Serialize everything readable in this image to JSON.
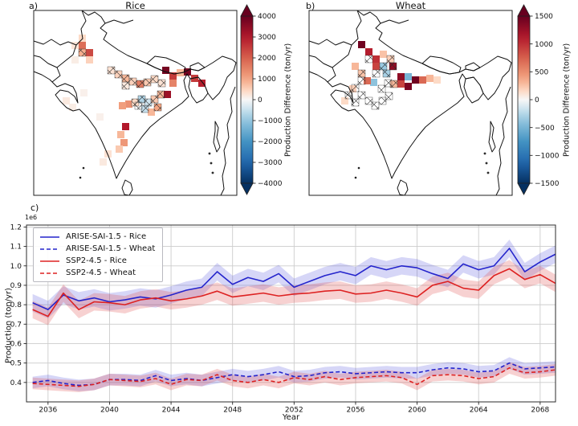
{
  "figure": {
    "panel_a": {
      "label": "a)",
      "title": "Rice",
      "colorbar": {
        "label": "Production Difference (ton/yr)",
        "vmax": 4000,
        "vmin": -4000,
        "ticks": [
          4000,
          3000,
          2000,
          1000,
          0,
          -1000,
          -2000,
          -3000,
          -4000
        ]
      }
    },
    "panel_b": {
      "label": "b)",
      "title": "Wheat",
      "colorbar": {
        "label": "Production Difference (ton/yr)",
        "vmax": 1500,
        "vmin": -1500,
        "ticks": [
          1500,
          1000,
          500,
          0,
          -500,
          -1000,
          -1500
        ]
      }
    },
    "panel_c": {
      "label": "c)",
      "offset_label": "1e6",
      "xlabel": "Year",
      "ylabel": "Production (ton/yr)"
    }
  },
  "chart_data": [
    {
      "type": "heatmap",
      "name": "rice-production-difference-map",
      "title": "Rice",
      "region": "India",
      "colorbar_label": "Production Difference (ton/yr)",
      "units": "ton/yr",
      "vmin": -4000,
      "vmax": 4000,
      "colorbar_ticks": [
        4000,
        3000,
        2000,
        1000,
        0,
        -1000,
        -2000,
        -3000,
        -4000
      ],
      "hatching_meaning": "stippled/hatched cells",
      "cells": [
        {
          "x": 56,
          "y": 30,
          "v": 400
        },
        {
          "x": 56,
          "y": 39,
          "v": 1800
        },
        {
          "x": 47,
          "y": 39,
          "v": 250
        },
        {
          "x": 65,
          "y": 48,
          "v": 2300
        },
        {
          "x": 56,
          "y": 48,
          "v": 900,
          "h": 1
        },
        {
          "x": 65,
          "y": 57,
          "v": 500
        },
        {
          "x": 47,
          "y": 57,
          "v": 150
        },
        {
          "x": 92,
          "y": 70,
          "v": 300,
          "h": 1
        },
        {
          "x": 101,
          "y": 75,
          "v": 500,
          "h": 1
        },
        {
          "x": 110,
          "y": 80,
          "v": 800,
          "h": 1
        },
        {
          "x": 119,
          "y": 84,
          "v": 500,
          "h": 1
        },
        {
          "x": 128,
          "y": 87,
          "v": 1600,
          "h": 1
        },
        {
          "x": 137,
          "y": 85,
          "v": 600,
          "h": 1
        },
        {
          "x": 146,
          "y": 81,
          "v": 400,
          "h": 1
        },
        {
          "x": 155,
          "y": 86,
          "v": 300,
          "h": 1
        },
        {
          "x": 110,
          "y": 89,
          "v": 200,
          "h": 1
        },
        {
          "x": 160,
          "y": 70,
          "v": 3800
        },
        {
          "x": 169,
          "y": 77,
          "v": 2500
        },
        {
          "x": 178,
          "y": 73,
          "v": 800
        },
        {
          "x": 187,
          "y": 72,
          "v": 3800
        },
        {
          "x": 196,
          "y": 80,
          "v": 2500
        },
        {
          "x": 205,
          "y": 86,
          "v": 2900
        },
        {
          "x": 169,
          "y": 86,
          "v": 1500
        },
        {
          "x": 114,
          "y": 112,
          "v": 1300
        },
        {
          "x": 106,
          "y": 114,
          "v": 1100
        },
        {
          "x": 122,
          "y": 110,
          "v": 400,
          "h": 1
        },
        {
          "x": 130,
          "y": 106,
          "v": -700,
          "h": 1
        },
        {
          "x": 138,
          "y": 110,
          "v": -400,
          "h": 1
        },
        {
          "x": 146,
          "y": 106,
          "v": 600,
          "h": 1
        },
        {
          "x": 154,
          "y": 100,
          "v": 800,
          "h": 1
        },
        {
          "x": 162,
          "y": 100,
          "v": 3300
        },
        {
          "x": 134,
          "y": 118,
          "v": -500,
          "h": 1
        },
        {
          "x": 142,
          "y": 122,
          "v": 800
        },
        {
          "x": 150,
          "y": 116,
          "v": 1000,
          "h": 1
        },
        {
          "x": 126,
          "y": 114,
          "h": 1
        },
        {
          "x": 110,
          "y": 140,
          "v": 3000
        },
        {
          "x": 104,
          "y": 150,
          "v": 800
        },
        {
          "x": 108,
          "y": 160,
          "v": 1200
        },
        {
          "x": 102,
          "y": 168,
          "v": 600
        },
        {
          "x": 36,
          "y": 108,
          "v": 200
        },
        {
          "x": 44,
          "y": 116,
          "v": 150
        },
        {
          "x": 78,
          "y": 128,
          "v": 100
        },
        {
          "x": 88,
          "y": 174,
          "v": 300
        },
        {
          "x": 82,
          "y": 184,
          "v": 200
        },
        {
          "x": 58,
          "y": 98,
          "v": 100
        }
      ]
    },
    {
      "type": "heatmap",
      "name": "wheat-production-difference-map",
      "title": "Wheat",
      "region": "India",
      "colorbar_label": "Production Difference (ton/yr)",
      "units": "ton/yr",
      "vmin": -1500,
      "vmax": 1500,
      "colorbar_ticks": [
        1500,
        1000,
        500,
        0,
        -500,
        -1000,
        -1500
      ],
      "hatching_meaning": "stippled/hatched cells",
      "cells": [
        {
          "x": 61,
          "y": 38,
          "v": 1450
        },
        {
          "x": 70,
          "y": 47,
          "v": 1100
        },
        {
          "x": 79,
          "y": 56,
          "v": 1000
        },
        {
          "x": 88,
          "y": 50,
          "v": 250
        },
        {
          "x": 79,
          "y": 65,
          "v": 900
        },
        {
          "x": 88,
          "y": 65,
          "v": -350,
          "h": 1
        },
        {
          "x": 97,
          "y": 56,
          "v": 200,
          "h": 1
        },
        {
          "x": 76,
          "y": 85,
          "v": -400
        },
        {
          "x": 100,
          "y": 65,
          "v": 1300,
          "h": 1
        },
        {
          "x": 110,
          "y": 78,
          "v": 1300
        },
        {
          "x": 119,
          "y": 78,
          "v": -500
        },
        {
          "x": 128,
          "y": 82,
          "v": 1450
        },
        {
          "x": 137,
          "y": 82,
          "v": 700
        },
        {
          "x": 110,
          "y": 87,
          "v": 900
        },
        {
          "x": 119,
          "y": 90,
          "v": 1400
        },
        {
          "x": 101,
          "y": 87,
          "v": 300,
          "h": 1
        },
        {
          "x": 68,
          "y": 83,
          "v": 700
        },
        {
          "x": 92,
          "y": 74,
          "v": -300,
          "h": 1
        },
        {
          "x": 146,
          "y": 80,
          "v": 300
        },
        {
          "x": 155,
          "y": 82,
          "v": 150
        },
        {
          "x": 50,
          "y": 93,
          "v": 200
        },
        {
          "x": 40,
          "y": 108,
          "v": 150
        },
        {
          "x": 61,
          "y": 74,
          "v": 250,
          "h": 1
        },
        {
          "x": 53,
          "y": 65,
          "v": 300
        },
        {
          "x": 70,
          "y": 56,
          "h": 1
        },
        {
          "x": 79,
          "y": 74,
          "h": 1
        },
        {
          "x": 61,
          "y": 83,
          "h": 1
        },
        {
          "x": 53,
          "y": 92,
          "h": 1
        },
        {
          "x": 61,
          "y": 101,
          "h": 1
        },
        {
          "x": 70,
          "y": 108,
          "h": 1
        },
        {
          "x": 78,
          "y": 114,
          "h": 1
        },
        {
          "x": 87,
          "y": 108,
          "h": 1
        },
        {
          "x": 95,
          "y": 102,
          "h": 1
        },
        {
          "x": 45,
          "y": 101,
          "h": 1
        },
        {
          "x": 53,
          "y": 110,
          "h": 1
        },
        {
          "x": 86,
          "y": 93,
          "h": 1
        },
        {
          "x": 94,
          "y": 86,
          "h": 1
        }
      ]
    },
    {
      "type": "line",
      "name": "production-timeseries",
      "xlabel": "Year",
      "ylabel": "Production (ton/yr)",
      "offset_text": "1e6",
      "grid": true,
      "legend_position": "upper left",
      "xlim": [
        2034.6,
        2069.0
      ],
      "ylim": [
        0.3,
        1.21
      ],
      "xticks": [
        2036,
        2040,
        2044,
        2048,
        2052,
        2056,
        2060,
        2064,
        2068
      ],
      "yticks": [
        0.4,
        0.5,
        0.6,
        0.7,
        0.8,
        0.9,
        1.0,
        1.1,
        1.2
      ],
      "x": [
        2035,
        2036,
        2037,
        2038,
        2039,
        2040,
        2041,
        2042,
        2043,
        2044,
        2045,
        2046,
        2047,
        2048,
        2049,
        2050,
        2051,
        2052,
        2053,
        2054,
        2055,
        2056,
        2057,
        2058,
        2059,
        2060,
        2061,
        2062,
        2063,
        2064,
        2065,
        2066,
        2067,
        2068,
        2069
      ],
      "series": [
        {
          "name": "ARISE-SAI-1.5 - Rice",
          "color": "#2424cc",
          "style": "solid",
          "band": 0.045,
          "values": [
            0.81,
            0.775,
            0.85,
            0.82,
            0.835,
            0.815,
            0.825,
            0.84,
            0.83,
            0.85,
            0.875,
            0.89,
            0.97,
            0.905,
            0.94,
            0.92,
            0.96,
            0.89,
            0.92,
            0.95,
            0.97,
            0.95,
            1.0,
            0.98,
            1.0,
            0.99,
            0.96,
            0.935,
            1.01,
            0.98,
            1.0,
            1.09,
            0.97,
            1.02,
            1.06
          ]
        },
        {
          "name": "ARISE-SAI-1.5 - Wheat",
          "color": "#2424cc",
          "style": "dashed",
          "band": 0.03,
          "values": [
            0.4,
            0.41,
            0.395,
            0.385,
            0.39,
            0.415,
            0.415,
            0.41,
            0.435,
            0.41,
            0.42,
            0.41,
            0.425,
            0.44,
            0.43,
            0.44,
            0.455,
            0.43,
            0.435,
            0.45,
            0.455,
            0.445,
            0.45,
            0.455,
            0.45,
            0.45,
            0.465,
            0.475,
            0.47,
            0.455,
            0.46,
            0.5,
            0.47,
            0.475,
            0.48
          ]
        },
        {
          "name": "SSP2-4.5 - Rice",
          "color": "#dd2222",
          "style": "solid",
          "band": 0.045,
          "values": [
            0.775,
            0.74,
            0.86,
            0.775,
            0.815,
            0.81,
            0.8,
            0.825,
            0.835,
            0.82,
            0.83,
            0.845,
            0.87,
            0.84,
            0.85,
            0.86,
            0.845,
            0.855,
            0.86,
            0.87,
            0.875,
            0.855,
            0.86,
            0.875,
            0.86,
            0.84,
            0.9,
            0.92,
            0.885,
            0.875,
            0.95,
            0.985,
            0.93,
            0.955,
            0.91
          ]
        },
        {
          "name": "SSP2-4.5 - Wheat",
          "color": "#dd2222",
          "style": "dashed",
          "band": 0.03,
          "values": [
            0.395,
            0.39,
            0.385,
            0.38,
            0.39,
            0.415,
            0.41,
            0.405,
            0.42,
            0.39,
            0.415,
            0.41,
            0.44,
            0.41,
            0.4,
            0.415,
            0.4,
            0.425,
            0.415,
            0.43,
            0.415,
            0.425,
            0.43,
            0.435,
            0.425,
            0.39,
            0.435,
            0.44,
            0.435,
            0.42,
            0.43,
            0.475,
            0.45,
            0.455,
            0.465
          ]
        }
      ]
    }
  ]
}
